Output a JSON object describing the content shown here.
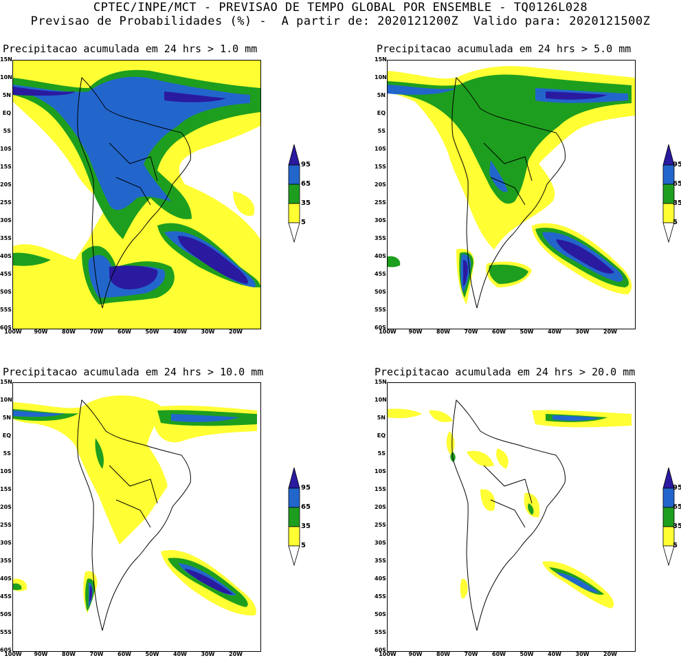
{
  "header": {
    "line1": "CPTEC/INPE/MCT - PREVISAO DE TEMPO GLOBAL POR ENSEMBLE - TQ0126L028",
    "line2": "Previsao de Probabilidades (%) -  A partir de: 2020121200Z  Valido para: 2020121500Z"
  },
  "axes": {
    "lat_labels": [
      "15N",
      "10N",
      "5N",
      "EQ",
      "5S",
      "10S",
      "15S",
      "20S",
      "25S",
      "30S",
      "35S",
      "40S",
      "45S",
      "50S",
      "55S",
      "60S"
    ],
    "lon_labels": [
      "100W",
      "90W",
      "80W",
      "70W",
      "60W",
      "50W",
      "40W",
      "30W",
      "20W"
    ]
  },
  "colorbar": {
    "labels": [
      "95",
      "65",
      "35",
      "5"
    ],
    "colors": {
      "c5": "#ffff33",
      "c35": "#1e9e1e",
      "c65": "#2266cc",
      "c95": "#2a1aa0",
      "land": "#000000"
    }
  },
  "panels": [
    {
      "title": "Precipitacao acumulada em 24 hrs > 1.0 mm",
      "threshold_mm": 1.0
    },
    {
      "title": "Precipitacao acumulada em 24 hrs > 5.0 mm",
      "threshold_mm": 5.0
    },
    {
      "title": "Precipitacao acumulada em 24 hrs > 10.0 mm",
      "threshold_mm": 10.0
    },
    {
      "title": "Precipitacao acumulada em 24 hrs > 20.0 mm",
      "threshold_mm": 20.0
    }
  ]
}
